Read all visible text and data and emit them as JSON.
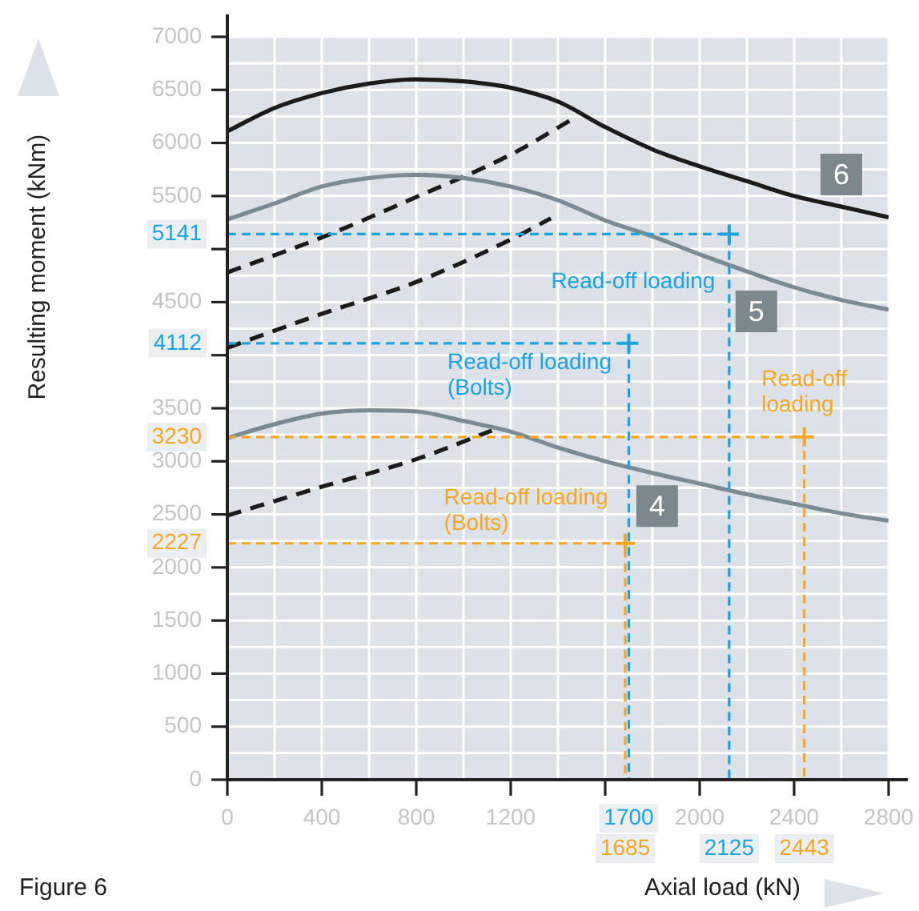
{
  "chart_data": {
    "type": "line",
    "xlabel": "Axial load (kN)",
    "ylabel": "Resulting moment (kNm)",
    "xlim": [
      0,
      2800
    ],
    "ylim": [
      0,
      7000
    ],
    "xticks": [
      0,
      400,
      800,
      1200,
      {
        "value": 1600,
        "label": null
      },
      2000,
      2400,
      2800
    ],
    "yticks": [
      0,
      500,
      1000,
      1500,
      2000,
      2500,
      3000,
      3500,
      {
        "value": 4000,
        "label": null
      },
      4500,
      {
        "value": 5000,
        "label": null
      },
      5500,
      6000,
      6500,
      7000
    ],
    "grid": true,
    "legend": false,
    "series": [
      {
        "name": "6",
        "color": "#1b1b1b",
        "x": [
          0,
          200,
          400,
          600,
          800,
          1000,
          1200,
          1400,
          1600,
          1800,
          2000,
          2200,
          2400,
          2600,
          2800
        ],
        "values": [
          6110,
          6330,
          6470,
          6560,
          6600,
          6580,
          6520,
          6390,
          6150,
          5940,
          5780,
          5640,
          5500,
          5400,
          5300
        ]
      },
      {
        "name": "5",
        "color": "#7c8a93",
        "x": [
          0,
          200,
          400,
          600,
          800,
          1000,
          1200,
          1400,
          1600,
          1800,
          2000,
          2200,
          2400,
          2600,
          2800
        ],
        "values": [
          5280,
          5430,
          5590,
          5670,
          5700,
          5670,
          5590,
          5460,
          5270,
          5120,
          4950,
          4790,
          4640,
          4520,
          4430
        ]
      },
      {
        "name": "4",
        "color": "#7c8a93",
        "x": [
          0,
          200,
          400,
          600,
          800,
          1000,
          1200,
          1400,
          1600,
          1800,
          2000,
          2200,
          2400,
          2600,
          2800
        ],
        "values": [
          3220,
          3350,
          3450,
          3480,
          3470,
          3380,
          3280,
          3130,
          3000,
          2890,
          2790,
          2690,
          2600,
          2510,
          2440
        ]
      },
      {
        "color": "#1b1b1b",
        "line_style": "dashed",
        "x": [
          0,
          400,
          800,
          1200,
          1480
        ],
        "values": [
          4780,
          5110,
          5490,
          5890,
          6250
        ]
      },
      {
        "color": "#1b1b1b",
        "line_style": "dashed",
        "x": [
          0,
          400,
          800,
          1200,
          1370
        ],
        "values": [
          4070,
          4390,
          4690,
          5090,
          5290
        ]
      },
      {
        "color": "#1b1b1b",
        "line_style": "dashed",
        "x": [
          0,
          400,
          800,
          1120
        ],
        "values": [
          2490,
          2760,
          3020,
          3290
        ]
      },
      {
        "color": "#1ba3e0",
        "line_style": "dashed",
        "x": [
          0,
          2125,
          2125
        ],
        "values": [
          5141,
          5141,
          0
        ]
      },
      {
        "color": "#1ba3e0",
        "line_style": "dashed",
        "x": [
          0,
          1700,
          1700
        ],
        "values": [
          4112,
          4112,
          0
        ]
      },
      {
        "color": "#f5a623",
        "line_style": "dashed",
        "x": [
          0,
          2443,
          2443
        ],
        "values": [
          3230,
          3230,
          0
        ]
      },
      {
        "color": "#f5a623",
        "line_style": "dashed",
        "x": [
          0,
          1685,
          1685
        ],
        "values": [
          2227,
          2227,
          0
        ]
      },
      {
        "type": "scatter",
        "marker": "cross",
        "color": "#1ba3e0",
        "x": [
          2125,
          1700
        ],
        "values": [
          5141,
          4112
        ]
      },
      {
        "type": "scatter",
        "marker": "cross",
        "color": "#f5a623",
        "x": [
          2443,
          1685
        ],
        "values": [
          3230,
          2227
        ]
      }
    ],
    "annotations": [
      "Figure 6",
      {
        "text": "Read-off loading",
        "x": 2125,
        "y": 5141
      },
      {
        "text": "Read-off loading\n(Bolts)",
        "x": 1700,
        "y": 4112
      },
      {
        "text": "Read-off\nloading",
        "x": 2443,
        "y": 3230
      },
      {
        "text": "Read-off loading\n(Bolts)",
        "x": 1685,
        "y": 2227
      },
      {
        "text": "5141",
        "x": 0,
        "y": 5141
      },
      {
        "text": "4112",
        "x": 0,
        "y": 4112
      },
      {
        "text": "3230",
        "x": 0,
        "y": 3230
      },
      {
        "text": "2227",
        "x": 0,
        "y": 2227
      },
      {
        "text": "1700",
        "x": 1700,
        "y": 0
      },
      {
        "text": "1685",
        "x": 1685,
        "y": 0
      },
      {
        "text": "2125",
        "x": 2125,
        "y": 0
      },
      {
        "text": "2443",
        "x": 2443,
        "y": 0
      }
    ]
  }
}
